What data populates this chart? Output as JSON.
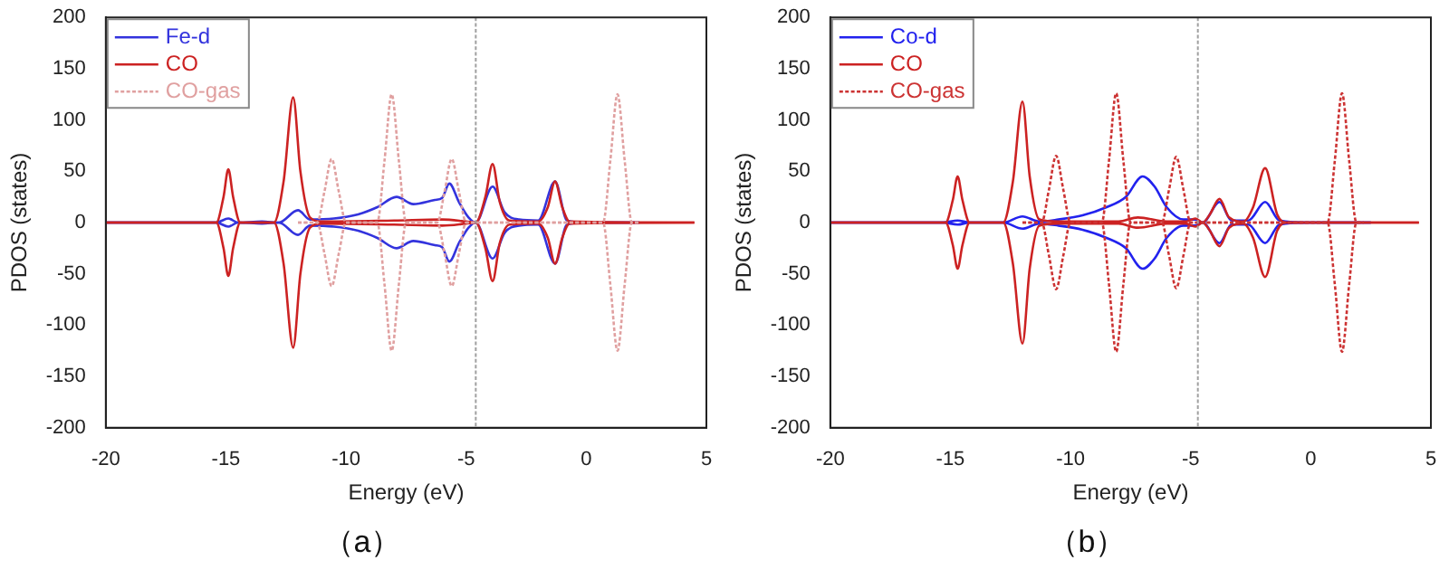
{
  "chart_data": [
    {
      "type": "line",
      "xlabel": "Energy (eV)",
      "ylabel": "PDOS (states)",
      "annotations": [
        "（a）"
      ],
      "xlim": [
        -20,
        5
      ],
      "xticks": [
        -20,
        -15,
        -10,
        -5,
        0,
        5
      ],
      "ylim": [
        -200,
        200
      ],
      "yticks": [
        -200,
        -150,
        -100,
        -50,
        0,
        50,
        100,
        150,
        200
      ],
      "grid": false,
      "legend": "top left",
      "marker": "none",
      "ref_lines": [
        {
          "axis": "x",
          "value": -4.6,
          "color": "#a0a0a0",
          "line_style": "dotted"
        }
      ],
      "series": [
        {
          "name": "Fe-d",
          "color": "#3333dd",
          "line_style": "solid",
          "x": [
            -20,
            -15.4,
            -14.9,
            -14.5,
            -13.5,
            -12.8,
            -12.0,
            -11.5,
            -10.5,
            -9.5,
            -8.7,
            -7.9,
            -7.2,
            -6.3,
            -6.0,
            -5.7,
            -5.3,
            -4.9,
            -4.6,
            -3.9,
            -3.4,
            -2.8,
            -2.0,
            -1.3,
            -0.8,
            0,
            2.2
          ],
          "values": [
            0,
            0,
            4,
            0,
            1,
            0,
            12,
            3,
            4,
            8,
            15,
            25,
            18,
            22,
            24,
            38,
            20,
            5,
            0,
            35,
            10,
            3,
            2,
            40,
            2,
            0,
            0
          ]
        },
        {
          "color": "#3333dd",
          "line_style": "solid",
          "x": [
            -20,
            -15.4,
            -14.9,
            -14.5,
            -13.5,
            -12.8,
            -12.0,
            -11.5,
            -10.5,
            -9.5,
            -8.7,
            -7.9,
            -7.2,
            -6.3,
            -6.0,
            -5.7,
            -5.3,
            -4.9,
            -4.6,
            -3.9,
            -3.4,
            -2.8,
            -2.0,
            -1.3,
            -0.8,
            0,
            2.2
          ],
          "values": [
            0,
            0,
            -4,
            0,
            -1,
            0,
            -12,
            -3,
            -4,
            -8,
            -15,
            -25,
            -18,
            -22,
            -24,
            -38,
            -20,
            -5,
            0,
            -35,
            -10,
            -3,
            -2,
            -40,
            -2,
            0,
            0
          ]
        },
        {
          "name": "CO",
          "color": "#cc2222",
          "line_style": "solid",
          "x": [
            -20,
            -15.4,
            -15.1,
            -14.9,
            -14.7,
            -14.4,
            -13.0,
            -12.6,
            -12.2,
            -11.9,
            -11.5,
            -11.0,
            -8.0,
            -6.0,
            -5.0,
            -4.6,
            -4.2,
            -3.9,
            -3.6,
            -3.2,
            -2.0,
            -1.6,
            -1.3,
            -1.0,
            -0.7,
            4.5
          ],
          "values": [
            0,
            0,
            25,
            52,
            25,
            0,
            0,
            40,
            122,
            50,
            5,
            1,
            2,
            3,
            1,
            0,
            25,
            57,
            20,
            2,
            1,
            15,
            40,
            15,
            1,
            0
          ]
        },
        {
          "color": "#cc2222",
          "line_style": "solid",
          "x": [
            -20,
            -15.4,
            -15.1,
            -14.9,
            -14.7,
            -14.4,
            -13.0,
            -12.6,
            -12.2,
            -11.9,
            -11.5,
            -11.0,
            -8.0,
            -6.0,
            -5.0,
            -4.6,
            -4.2,
            -3.9,
            -3.6,
            -3.2,
            -2.0,
            -1.6,
            -1.3,
            -1.0,
            -0.7,
            4.5
          ],
          "values": [
            0,
            0,
            -25,
            -52,
            -25,
            0,
            0,
            -40,
            -122,
            -50,
            -5,
            -1,
            -2,
            -3,
            -1,
            0,
            -25,
            -57,
            -20,
            -2,
            -1,
            -15,
            -40,
            -15,
            -1,
            0
          ]
        },
        {
          "name": "CO-gas",
          "color": "#e0a0a0",
          "line_style": "dotted",
          "x": [
            -12,
            -11.2,
            -10.9,
            -10.6,
            -10.3,
            -10.0,
            -8.7,
            -8.4,
            -8.1,
            -7.8,
            -7.5,
            -6.2,
            -5.9,
            -5.6,
            -5.3,
            -5.0,
            0.7,
            1.0,
            1.3,
            1.6,
            1.9,
            2.2
          ],
          "values": [
            0,
            0,
            30,
            62,
            30,
            0,
            0,
            60,
            125,
            60,
            0,
            0,
            30,
            62,
            30,
            0,
            0,
            60,
            125,
            60,
            0,
            0
          ]
        },
        {
          "color": "#e0a0a0",
          "line_style": "dotted",
          "x": [
            -12,
            -11.2,
            -10.9,
            -10.6,
            -10.3,
            -10.0,
            -8.7,
            -8.4,
            -8.1,
            -7.8,
            -7.5,
            -6.2,
            -5.9,
            -5.6,
            -5.3,
            -5.0,
            0.7,
            1.0,
            1.3,
            1.6,
            1.9,
            2.2
          ],
          "values": [
            0,
            0,
            -30,
            -62,
            -30,
            0,
            0,
            -60,
            -125,
            -60,
            0,
            0,
            -30,
            -62,
            -30,
            0,
            0,
            -60,
            -125,
            -60,
            0,
            0
          ]
        }
      ]
    },
    {
      "type": "line",
      "xlabel": "Energy (eV)",
      "ylabel": "PDOS (states)",
      "annotations": [
        "（b）"
      ],
      "xlim": [
        -20,
        5
      ],
      "xticks": [
        -20,
        -15,
        -10,
        -5,
        0,
        5
      ],
      "ylim": [
        -200,
        200
      ],
      "yticks": [
        -200,
        -150,
        -100,
        -50,
        0,
        50,
        100,
        150,
        200
      ],
      "grid": false,
      "legend": "top left",
      "marker": "none",
      "ref_lines": [
        {
          "axis": "x",
          "value": -4.7,
          "color": "#a0a0a0",
          "line_style": "dotted"
        }
      ],
      "series": [
        {
          "name": "Co-d",
          "color": "#2222ee",
          "line_style": "solid",
          "x": [
            -20,
            -15.3,
            -14.7,
            -14.2,
            -12.8,
            -12.0,
            -11.3,
            -10.5,
            -9.5,
            -8.5,
            -7.7,
            -7.0,
            -6.5,
            -6.0,
            -5.3,
            -4.8,
            -4.5,
            -3.8,
            -3.3,
            -2.6,
            -1.9,
            -1.3,
            0,
            2.5
          ],
          "values": [
            0,
            0,
            2,
            0,
            0,
            6,
            1,
            3,
            7,
            15,
            25,
            45,
            35,
            15,
            3,
            3,
            0,
            20,
            2,
            2,
            20,
            2,
            0,
            0
          ]
        },
        {
          "color": "#2222ee",
          "line_style": "solid",
          "x": [
            -20,
            -15.3,
            -14.7,
            -14.2,
            -12.8,
            -12.0,
            -11.3,
            -10.5,
            -9.5,
            -8.5,
            -7.7,
            -7.0,
            -6.5,
            -6.0,
            -5.3,
            -4.8,
            -4.5,
            -3.8,
            -3.3,
            -2.6,
            -1.9,
            -1.3,
            0,
            2.5
          ],
          "values": [
            0,
            0,
            -2,
            0,
            0,
            -6,
            -1,
            -3,
            -7,
            -15,
            -25,
            -45,
            -35,
            -15,
            -3,
            -3,
            0,
            -20,
            -2,
            -2,
            -20,
            -2,
            0,
            0
          ]
        },
        {
          "name": "CO",
          "color": "#cc2222",
          "line_style": "solid",
          "x": [
            -20,
            -15.2,
            -14.9,
            -14.7,
            -14.5,
            -14.2,
            -12.8,
            -12.4,
            -12.0,
            -11.7,
            -11.3,
            -10.5,
            -8.0,
            -7.2,
            -6.0,
            -5.2,
            -4.8,
            -4.5,
            -4.2,
            -3.8,
            -3.4,
            -2.8,
            -2.4,
            -1.9,
            -1.4,
            -1.0,
            4.5
          ],
          "values": [
            0,
            0,
            22,
            45,
            22,
            0,
            0,
            40,
            118,
            45,
            3,
            1,
            1,
            5,
            1,
            1,
            4,
            0,
            8,
            23,
            5,
            1,
            15,
            53,
            8,
            0,
            0
          ]
        },
        {
          "color": "#cc2222",
          "line_style": "solid",
          "x": [
            -20,
            -15.2,
            -14.9,
            -14.7,
            -14.5,
            -14.2,
            -12.8,
            -12.4,
            -12.0,
            -11.7,
            -11.3,
            -10.5,
            -8.0,
            -7.2,
            -6.0,
            -5.2,
            -4.8,
            -4.5,
            -4.2,
            -3.8,
            -3.4,
            -2.8,
            -2.4,
            -1.9,
            -1.4,
            -1.0,
            4.5
          ],
          "values": [
            0,
            0,
            -22,
            -45,
            -22,
            0,
            0,
            -40,
            -118,
            -45,
            -3,
            -1,
            -1,
            -5,
            -1,
            -1,
            -4,
            0,
            -8,
            -23,
            -5,
            -1,
            -15,
            -53,
            -8,
            0,
            0
          ]
        },
        {
          "name": "CO-gas",
          "color": "#cc3333",
          "line_style": "dotted",
          "x": [
            -12,
            -11.2,
            -10.9,
            -10.6,
            -10.3,
            -10.0,
            -8.7,
            -8.4,
            -8.1,
            -7.8,
            -7.5,
            -6.2,
            -5.9,
            -5.6,
            -5.3,
            -5.0,
            0.7,
            1.0,
            1.3,
            1.6,
            1.9,
            2.2
          ],
          "values": [
            0,
            0,
            32,
            65,
            32,
            0,
            0,
            60,
            126,
            60,
            0,
            0,
            32,
            64,
            32,
            0,
            0,
            60,
            126,
            60,
            0,
            0
          ]
        },
        {
          "color": "#cc3333",
          "line_style": "dotted",
          "x": [
            -12,
            -11.2,
            -10.9,
            -10.6,
            -10.3,
            -10.0,
            -8.7,
            -8.4,
            -8.1,
            -7.8,
            -7.5,
            -6.2,
            -5.9,
            -5.6,
            -5.3,
            -5.0,
            0.7,
            1.0,
            1.3,
            1.6,
            1.9,
            2.2
          ],
          "values": [
            0,
            0,
            -32,
            -65,
            -32,
            0,
            0,
            -60,
            -126,
            -60,
            0,
            0,
            -32,
            -64,
            -32,
            0,
            0,
            -60,
            -126,
            -60,
            0,
            0
          ]
        }
      ]
    }
  ]
}
